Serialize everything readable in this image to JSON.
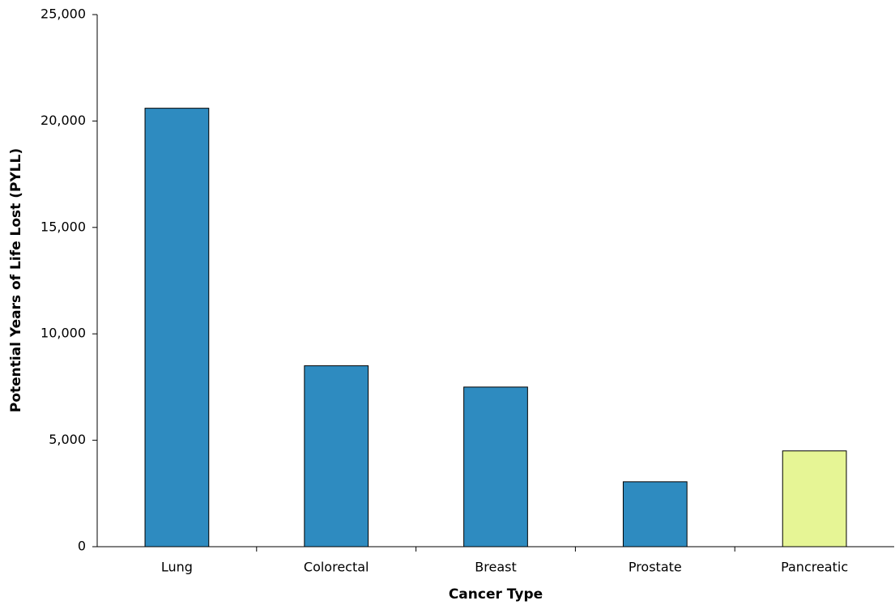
{
  "chart_data": {
    "type": "bar",
    "x_label": "Cancer Type",
    "y_label": "Potential Years of Life Lost (PYLL)",
    "categories": [
      "Lung",
      "Colorectal",
      "Breast",
      "Prostate",
      "Pancreatic"
    ],
    "values": [
      20600,
      8500,
      7500,
      3050,
      4500
    ],
    "colors": [
      "#2e8bc0",
      "#2e8bc0",
      "#2e8bc0",
      "#2e8bc0",
      "#e6f595"
    ],
    "ylim": [
      0,
      25000
    ],
    "yticks": [
      0,
      {
        "value": 5000,
        "label": "5,000"
      },
      {
        "value": 10000,
        "label": "10,000"
      },
      {
        "value": 15000,
        "label": "15,000"
      },
      {
        "value": 20000,
        "label": "20,000"
      },
      {
        "value": 25000,
        "label": "25,000"
      }
    ],
    "grid": false
  }
}
